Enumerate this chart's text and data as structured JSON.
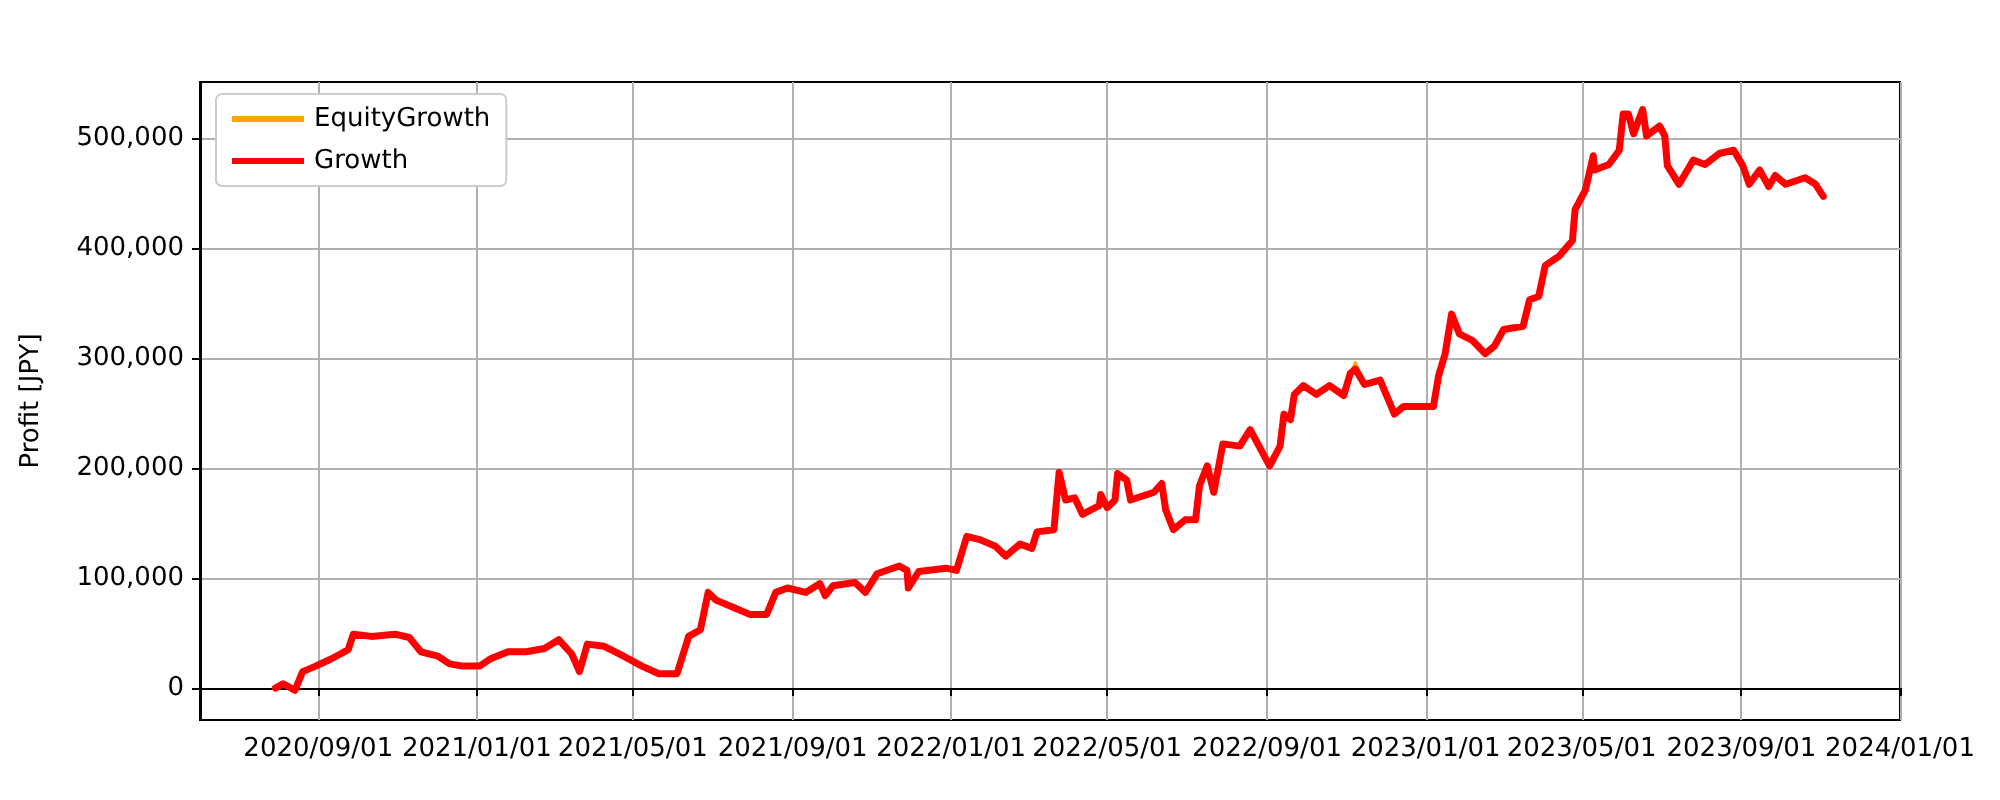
{
  "chart_data": {
    "type": "line",
    "ylabel": "Profit [JPY]",
    "x": [
      "2020-07-30",
      "2020-08-05",
      "2020-08-14",
      "2020-08-20",
      "2020-08-30",
      "2020-09-10",
      "2020-09-18",
      "2020-09-24",
      "2020-09-28",
      "2020-10-12",
      "2020-10-30",
      "2020-11-10",
      "2020-11-19",
      "2020-12-02",
      "2020-12-11",
      "2020-12-21",
      "2021-01-03",
      "2021-01-12",
      "2021-01-25",
      "2021-02-08",
      "2021-02-22",
      "2021-03-05",
      "2021-03-15",
      "2021-03-21",
      "2021-03-27",
      "2021-04-09",
      "2021-04-24",
      "2021-05-08",
      "2021-05-21",
      "2021-06-04",
      "2021-06-13",
      "2021-06-22",
      "2021-06-28",
      "2021-07-04",
      "2021-07-18",
      "2021-07-30",
      "2021-08-12",
      "2021-08-19",
      "2021-08-28",
      "2021-09-11",
      "2021-09-22",
      "2021-09-26",
      "2021-10-02",
      "2021-10-19",
      "2021-10-27",
      "2021-11-05",
      "2021-11-22",
      "2021-11-28",
      "2021-11-29",
      "2021-12-07",
      "2021-12-28",
      "2022-01-05",
      "2022-01-13",
      "2022-01-23",
      "2022-02-04",
      "2022-02-12",
      "2022-02-23",
      "2022-03-04",
      "2022-03-08",
      "2022-03-21",
      "2022-03-25",
      "2022-03-30",
      "2022-04-06",
      "2022-04-12",
      "2022-04-25",
      "2022-04-26",
      "2022-05-01",
      "2022-05-07",
      "2022-05-09",
      "2022-05-16",
      "2022-05-19",
      "2022-06-06",
      "2022-06-12",
      "2022-06-15",
      "2022-06-21",
      "2022-06-30",
      "2022-07-08",
      "2022-07-11",
      "2022-07-17",
      "2022-07-22",
      "2022-07-29",
      "2022-08-11",
      "2022-08-19",
      "2022-09-03",
      "2022-09-11",
      "2022-09-14",
      "2022-09-19",
      "2022-09-22",
      "2022-09-29",
      "2022-10-09",
      "2022-10-19",
      "2022-10-30",
      "2022-11-04",
      "2022-11-08",
      "2022-11-15",
      "2022-11-27",
      "2022-12-08",
      "2022-12-15",
      "2023-01-07",
      "2023-01-11",
      "2023-01-16",
      "2023-01-21",
      "2023-01-27",
      "2023-02-06",
      "2023-02-16",
      "2023-02-23",
      "2023-03-02",
      "2023-03-17",
      "2023-03-22",
      "2023-03-29",
      "2023-04-03",
      "2023-04-14",
      "2023-04-24",
      "2023-04-26",
      "2023-05-04",
      "2023-05-10",
      "2023-05-11",
      "2023-05-22",
      "2023-05-30",
      "2023-06-02",
      "2023-06-06",
      "2023-06-10",
      "2023-06-17",
      "2023-06-20",
      "2023-06-30",
      "2023-07-04",
      "2023-07-06",
      "2023-07-15",
      "2023-07-26",
      "2023-08-04",
      "2023-08-15",
      "2023-08-26",
      "2023-09-02",
      "2023-09-07",
      "2023-09-15",
      "2023-09-22",
      "2023-09-27",
      "2023-10-05",
      "2023-10-20",
      "2023-10-28",
      "2023-11-03"
    ],
    "series": [
      {
        "name": "EquityGrowth",
        "color": "#ffa500",
        "values": [
          null,
          null,
          null,
          null,
          null,
          null,
          null,
          null,
          null,
          null,
          null,
          null,
          null,
          null,
          null,
          null,
          null,
          null,
          null,
          null,
          null,
          null,
          null,
          null,
          null,
          null,
          null,
          null,
          null,
          null,
          null,
          null,
          null,
          null,
          null,
          null,
          null,
          null,
          null,
          null,
          null,
          null,
          null,
          null,
          null,
          null,
          null,
          null,
          null,
          null,
          null,
          null,
          null,
          null,
          null,
          null,
          null,
          null,
          null,
          null,
          null,
          null,
          null,
          null,
          null,
          null,
          null,
          null,
          null,
          null,
          null,
          null,
          null,
          null,
          null,
          null,
          null,
          null,
          null,
          null,
          null,
          null,
          null,
          null,
          null,
          null,
          null,
          null,
          null,
          null,
          null,
          null,
          286000,
          296000,
          276000,
          null,
          null,
          null,
          null,
          null,
          null,
          null,
          null,
          null,
          null,
          null,
          null,
          null,
          null,
          null,
          null,
          null,
          null,
          null,
          null,
          null,
          null,
          null,
          null,
          null,
          null,
          null,
          null,
          null,
          null,
          null,
          null,
          null,
          null,
          null,
          null,
          null,
          null,
          null,
          null,
          null,
          null,
          null,
          null,
          null,
          null
        ]
      },
      {
        "name": "Growth",
        "color": "#ff0000",
        "values": [
          0,
          4000,
          -2000,
          15000,
          20000,
          26000,
          31000,
          35000,
          49000,
          47000,
          49000,
          46000,
          33000,
          29000,
          22000,
          20000,
          20000,
          27000,
          33000,
          33000,
          36000,
          44000,
          31000,
          15000,
          40000,
          38000,
          29000,
          20000,
          13000,
          13000,
          47000,
          53000,
          87000,
          80000,
          73000,
          67000,
          67000,
          87000,
          91000,
          87000,
          95000,
          84000,
          93000,
          96000,
          87000,
          104000,
          111000,
          107000,
          91000,
          106000,
          109000,
          107000,
          138000,
          135000,
          129000,
          120000,
          131000,
          127000,
          142000,
          144000,
          196000,
          171000,
          173000,
          158000,
          166000,
          176000,
          164000,
          171000,
          195000,
          189000,
          171000,
          178000,
          186000,
          162000,
          144000,
          153000,
          153000,
          184000,
          202000,
          178000,
          222000,
          220000,
          235000,
          202000,
          220000,
          249000,
          244000,
          267000,
          275000,
          267000,
          275000,
          266000,
          286000,
          290000,
          276000,
          280000,
          249000,
          256000,
          256000,
          284000,
          304000,
          340000,
          322000,
          316000,
          304000,
          311000,
          326000,
          329000,
          353000,
          356000,
          384000,
          393000,
          407000,
          435000,
          453000,
          484000,
          471000,
          476000,
          489000,
          522000,
          522000,
          504000,
          526000,
          502000,
          511000,
          502000,
          475000,
          458000,
          480000,
          476000,
          486000,
          489000,
          475000,
          458000,
          471000,
          456000,
          466000,
          458000,
          464000,
          458000,
          447000
        ]
      }
    ],
    "xlim": [
      "2020-06-02",
      "2024-01-01"
    ],
    "xticks": [
      {
        "value": "2020-09-01",
        "label": "2020/09/01"
      },
      {
        "value": "2021-01-01",
        "label": "2021/01/01"
      },
      {
        "value": "2021-05-01",
        "label": "2021/05/01"
      },
      {
        "value": "2021-09-01",
        "label": "2021/09/01"
      },
      {
        "value": "2022-01-01",
        "label": "2022/01/01"
      },
      {
        "value": "2022-05-01",
        "label": "2022/05/01"
      },
      {
        "value": "2022-09-01",
        "label": "2022/09/01"
      },
      {
        "value": "2023-01-01",
        "label": "2023/01/01"
      },
      {
        "value": "2023-05-01",
        "label": "2023/05/01"
      },
      {
        "value": "2023-09-01",
        "label": "2023/09/01"
      },
      {
        "value": "2024-01-01",
        "label": "2024/01/01"
      }
    ],
    "ylim": [
      -29000,
      551000
    ],
    "yticks": [
      {
        "value": 0,
        "label": "0"
      },
      {
        "value": 100000,
        "label": "100,000"
      },
      {
        "value": 200000,
        "label": "200,000"
      },
      {
        "value": 300000,
        "label": "300,000"
      },
      {
        "value": 400000,
        "label": "400,000"
      },
      {
        "value": 500000,
        "label": "500,000"
      }
    ],
    "grid": true,
    "legend": "top left",
    "marker": "none",
    "line_style": "solid"
  }
}
